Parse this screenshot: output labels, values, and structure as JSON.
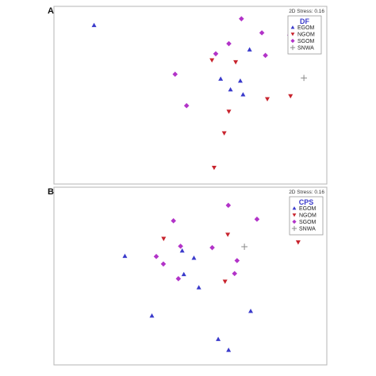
{
  "chart_data": [
    {
      "type": "scatter",
      "panel_label": "A",
      "stress_text": "2D Stress: 0.16",
      "legend_title": "DF",
      "xlim": [
        0,
        100
      ],
      "ylim": [
        0,
        100
      ],
      "grid": false,
      "legend_position": "top-right",
      "series": [
        {
          "name": "EGOM",
          "marker": "triangle-up",
          "color": "#3a3acb",
          "points": [
            [
              14.7,
              89.4
            ],
            [
              71.7,
              75.7
            ],
            [
              61.1,
              59.2
            ],
            [
              68.3,
              58.1
            ],
            [
              64.7,
              53.2
            ],
            [
              69.3,
              50.4
            ]
          ]
        },
        {
          "name": "NGOM",
          "marker": "triangle-down",
          "color": "#c8242e",
          "points": [
            [
              57.9,
              69.7
            ],
            [
              66.6,
              68.6
            ],
            [
              78.2,
              47.8
            ],
            [
              86.7,
              49.5
            ],
            [
              64.1,
              40.8
            ],
            [
              62.4,
              28.6
            ],
            [
              58.7,
              9.2
            ]
          ]
        },
        {
          "name": "SGOM",
          "marker": "diamond",
          "color": "#b233c8",
          "points": [
            [
              68.7,
              93.0
            ],
            [
              76.2,
              85.1
            ],
            [
              86.4,
              83.8
            ],
            [
              64.1,
              79.0
            ],
            [
              59.3,
              73.3
            ],
            [
              77.5,
              72.4
            ],
            [
              44.4,
              61.8
            ],
            [
              48.6,
              44.1
            ]
          ]
        },
        {
          "name": "SNWA",
          "marker": "plus",
          "color": "#8a8a8a",
          "points": [
            [
              91.6,
              59.7
            ]
          ]
        }
      ]
    },
    {
      "type": "scatter",
      "panel_label": "B",
      "stress_text": "2D Stress: 0.16",
      "legend_title": "CPS",
      "xlim": [
        0,
        100
      ],
      "ylim": [
        0,
        100
      ],
      "grid": false,
      "legend_position": "top-right",
      "series": [
        {
          "name": "EGOM",
          "marker": "triangle-up",
          "color": "#3a3acb",
          "points": [
            [
              26.0,
              61.3
            ],
            [
              47.0,
              64.3
            ],
            [
              51.3,
              60.2
            ],
            [
              47.6,
              51.0
            ],
            [
              53.1,
              43.6
            ],
            [
              35.9,
              27.7
            ],
            [
              72.1,
              30.3
            ],
            [
              60.2,
              14.5
            ],
            [
              64.0,
              8.4
            ]
          ]
        },
        {
          "name": "NGOM",
          "marker": "triangle-down",
          "color": "#c8242e",
          "points": [
            [
              40.2,
              71.0
            ],
            [
              63.7,
              73.3
            ],
            [
              89.5,
              69.0
            ],
            [
              62.7,
              46.9
            ]
          ]
        },
        {
          "name": "SGOM",
          "marker": "diamond",
          "color": "#b233c8",
          "points": [
            [
              63.9,
              89.8
            ],
            [
              43.8,
              81.1
            ],
            [
              74.4,
              82.0
            ],
            [
              46.4,
              66.8
            ],
            [
              58.0,
              66.0
            ],
            [
              37.5,
              61.0
            ],
            [
              67.1,
              58.7
            ],
            [
              40.1,
              56.8
            ],
            [
              45.6,
              48.5
            ],
            [
              66.2,
              51.4
            ]
          ]
        },
        {
          "name": "SNWA",
          "marker": "plus",
          "color": "#8a8a8a",
          "points": [
            [
              69.8,
              66.5
            ]
          ]
        }
      ]
    }
  ]
}
